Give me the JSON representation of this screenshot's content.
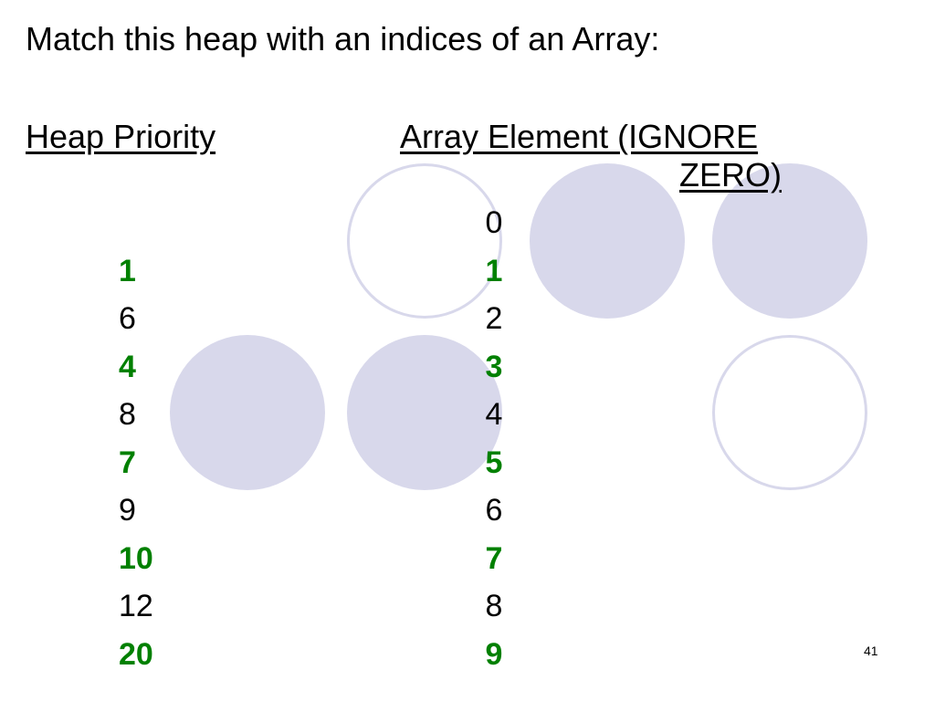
{
  "title": "Match this heap with an indices of an Array:",
  "headers": {
    "heap": "Heap Priority",
    "array_line1": "Array Element (IGNORE",
    "array_line2": "ZERO)"
  },
  "heap_priority": [
    "1",
    "6",
    "4",
    "8",
    "7",
    "9",
    "10",
    "12",
    "20"
  ],
  "array_indices": [
    "0",
    "1",
    "2",
    "3",
    "4",
    "5",
    "6",
    "7",
    "8",
    "9"
  ],
  "highlight_color": "#008000",
  "circle_color": "#d8d8eb",
  "page_number": "41"
}
